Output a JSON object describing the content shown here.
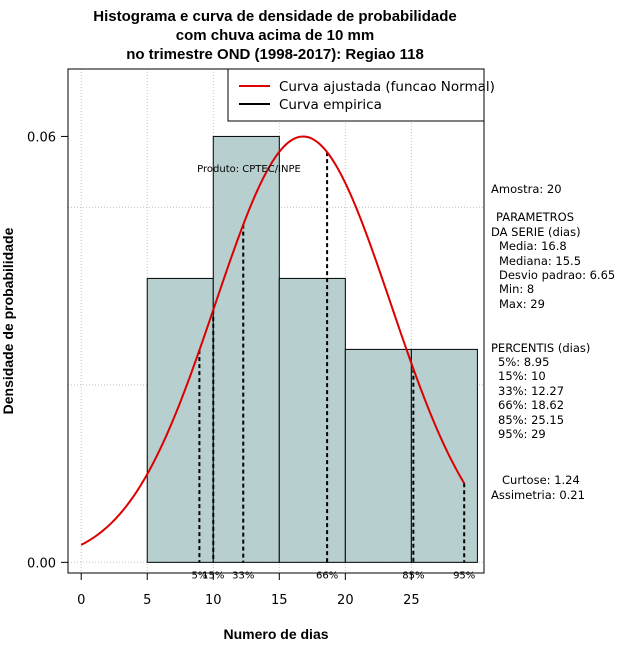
{
  "chart_data": {
    "type": "histogram",
    "title_lines": [
      "Histograma e curva de densidade de probabilidade",
      "com chuva acima de 10 mm",
      "no trimestre OND (1998-2017): Regiao 118"
    ],
    "xlabel": "Numero de dias",
    "ylabel": "Densidade de probabilidade",
    "xlim": [
      -1,
      30.5
    ],
    "ylim": [
      -0.0015,
      0.0695
    ],
    "x_ticks": [
      "0",
      "5",
      "10",
      "15",
      "20",
      "25"
    ],
    "y_ticks": [
      "0.00",
      "0.06"
    ],
    "bins": [
      {
        "from": 5,
        "to": 10,
        "density": 0.04
      },
      {
        "from": 10,
        "to": 15,
        "density": 0.06
      },
      {
        "from": 15,
        "to": 20,
        "density": 0.04
      },
      {
        "from": 20,
        "to": 25,
        "density": 0.03
      },
      {
        "from": 25,
        "to": 30,
        "density": 0.03
      }
    ],
    "bar_color": "#b7cfcf",
    "normal_curve": {
      "mean": 16.8,
      "sd": 6.65,
      "x_from": 0,
      "x_to": 29,
      "color": "#dd0000"
    },
    "percentiles": [
      {
        "label": "5%",
        "x": 8.95
      },
      {
        "label": "15%",
        "x": 10
      },
      {
        "label": "33%",
        "x": 12.27
      },
      {
        "label": "66%",
        "x": 18.62
      },
      {
        "label": "85%",
        "x": 25.15
      },
      {
        "label": "95%",
        "x": 29
      }
    ],
    "legend": {
      "position": "top-right",
      "entries": [
        {
          "label": "Curva ajustada (funcao Normal)",
          "color": "#dd0000"
        },
        {
          "label": "Curva empirica",
          "color": "#000000"
        }
      ]
    },
    "annotation": "Produto: CPTEC/INPE",
    "grid": true
  },
  "side_panel": {
    "sample": "Amostra: 20",
    "params_title": "PARAMETROS",
    "params_subtitle": "DA SERIE (dias)",
    "params": [
      "Media: 16.8",
      "Mediana: 15.5",
      "Desvio padrao: 6.65",
      "Min: 8",
      "Max: 29"
    ],
    "perc_title": "PERCENTIS (dias)",
    "percs": [
      "5%: 8.95",
      "15%: 10",
      "33%: 12.27",
      "66%: 18.62",
      "85%: 25.15",
      "95%: 29"
    ],
    "kurtosis": "Curtose: 1.24",
    "skewness": "Assimetria: 0.21"
  }
}
